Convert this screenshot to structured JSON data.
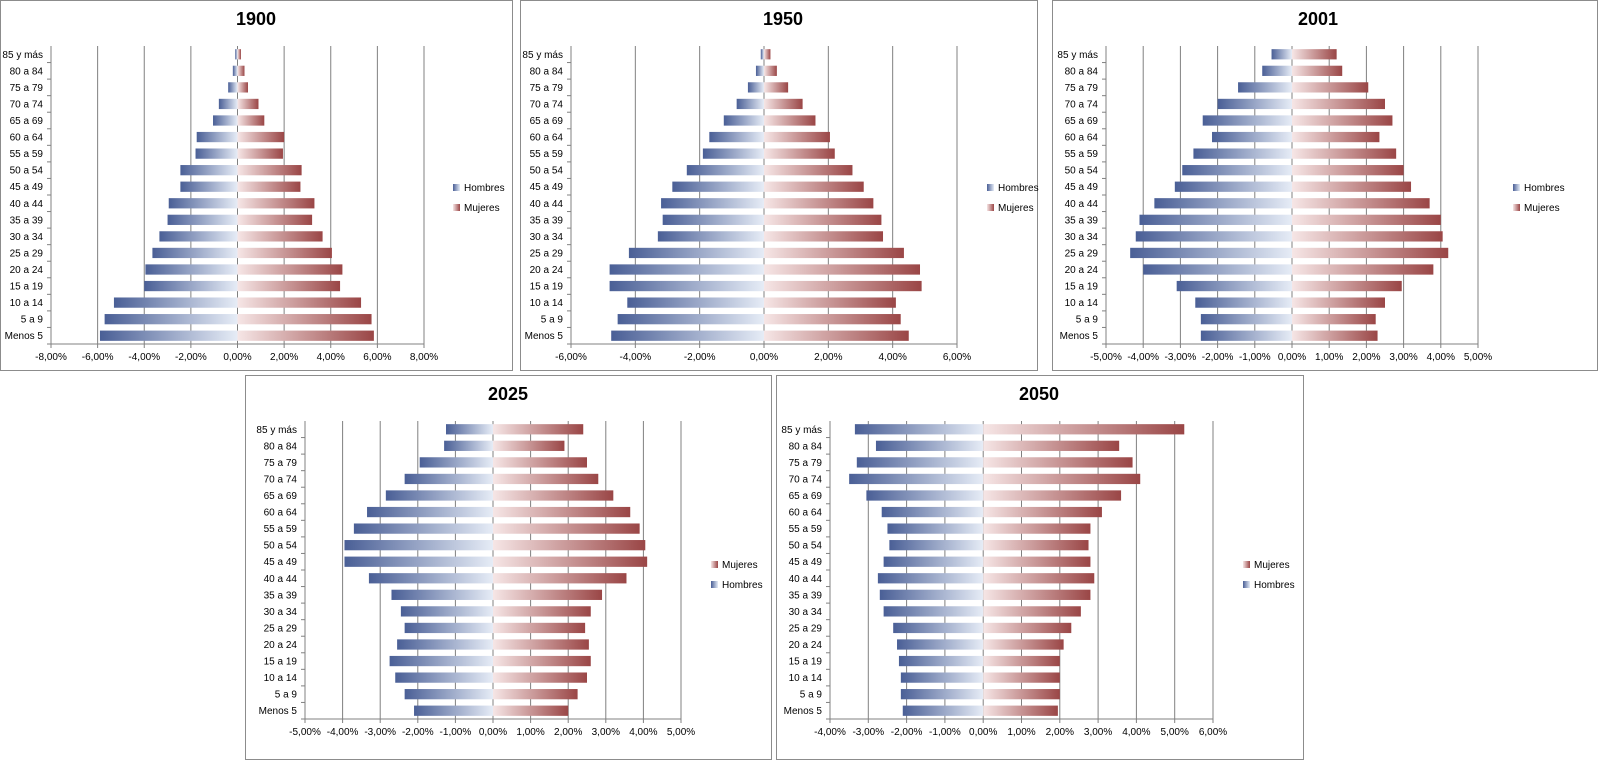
{
  "age_groups": [
    "Menos 5",
    "5 a 9",
    "10 a 14",
    "15 a 19",
    "20 a 24",
    "25 a 29",
    "30 a 34",
    "35 a 39",
    "40 a 44",
    "45 a 49",
    "50 a 54",
    "55 a 59",
    "60 a 64",
    "65 a 69",
    "70 a 74",
    "75 a 79",
    "80 a 84",
    "85 y más"
  ],
  "legend_labels": {
    "men": "Hombres",
    "women": "Mujeres"
  },
  "colors": {
    "men_dark": "#4a5f96",
    "men_light": "#e6ecf6",
    "women_light": "#f6e6e6",
    "women_dark": "#9a4646",
    "grid": "#808080",
    "axis": "#808080"
  },
  "chart_data": [
    {
      "type": "bar",
      "title": "1900",
      "legend_order": [
        "men",
        "women"
      ],
      "xlim": [
        -8,
        8
      ],
      "xticks": [
        "-8,00%",
        "-6,00%",
        "-4,00%",
        "-2,00%",
        "0,00%",
        "2,00%",
        "4,00%",
        "6,00%",
        "8,00%"
      ],
      "series": [
        {
          "name": "Hombres",
          "values": [
            -5.9,
            -5.7,
            -5.3,
            -4.0,
            -3.95,
            -3.65,
            -3.35,
            -3.0,
            -2.95,
            -2.45,
            -2.45,
            -1.8,
            -1.75,
            -1.05,
            -0.8,
            -0.4,
            -0.2,
            -0.1
          ]
        },
        {
          "name": "Mujeres",
          "values": [
            5.85,
            5.75,
            5.3,
            4.4,
            4.5,
            4.05,
            3.65,
            3.2,
            3.3,
            2.7,
            2.75,
            1.95,
            2.0,
            1.15,
            0.9,
            0.45,
            0.3,
            0.15
          ]
        }
      ]
    },
    {
      "type": "bar",
      "title": "1950",
      "legend_order": [
        "men",
        "women"
      ],
      "xlim": [
        -6,
        6
      ],
      "xticks": [
        "-6,00%",
        "-4,00%",
        "-2,00%",
        "0,00%",
        "2,00%",
        "4,00%",
        "6,00%"
      ],
      "series": [
        {
          "name": "Hombres",
          "values": [
            -4.75,
            -4.55,
            -4.25,
            -4.8,
            -4.8,
            -4.2,
            -3.3,
            -3.15,
            -3.2,
            -2.85,
            -2.4,
            -1.9,
            -1.7,
            -1.25,
            -0.85,
            -0.5,
            -0.25,
            -0.1
          ]
        },
        {
          "name": "Mujeres",
          "values": [
            4.5,
            4.25,
            4.1,
            4.9,
            4.85,
            4.35,
            3.7,
            3.65,
            3.4,
            3.1,
            2.75,
            2.2,
            2.05,
            1.6,
            1.2,
            0.75,
            0.4,
            0.2
          ]
        }
      ]
    },
    {
      "type": "bar",
      "title": "2001",
      "legend_order": [
        "men",
        "women"
      ],
      "xlim": [
        -5,
        5
      ],
      "xticks": [
        "-5,00%",
        "-4,00%",
        "-3,00%",
        "-2,00%",
        "-1,00%",
        "0,00%",
        "1,00%",
        "2,00%",
        "3,00%",
        "4,00%",
        "5,00%"
      ],
      "series": [
        {
          "name": "Hombres",
          "values": [
            -2.45,
            -2.45,
            -2.6,
            -3.1,
            -4.0,
            -4.35,
            -4.2,
            -4.1,
            -3.7,
            -3.15,
            -2.95,
            -2.65,
            -2.15,
            -2.4,
            -2.0,
            -1.45,
            -0.8,
            -0.55
          ]
        },
        {
          "name": "Mujeres",
          "values": [
            2.3,
            2.25,
            2.5,
            2.95,
            3.8,
            4.2,
            4.05,
            4.0,
            3.7,
            3.2,
            3.0,
            2.8,
            2.35,
            2.7,
            2.5,
            2.05,
            1.35,
            1.2
          ]
        }
      ]
    },
    {
      "type": "bar",
      "title": "2025",
      "legend_order": [
        "women",
        "men"
      ],
      "xlim": [
        -5,
        5
      ],
      "xticks": [
        "-5,00%",
        "-4,00%",
        "-3,00%",
        "-2,00%",
        "-1,00%",
        "0,00%",
        "1,00%",
        "2,00%",
        "3,00%",
        "4,00%",
        "5,00%"
      ],
      "series": [
        {
          "name": "Hombres",
          "values": [
            -2.1,
            -2.35,
            -2.6,
            -2.75,
            -2.55,
            -2.35,
            -2.45,
            -2.7,
            -3.3,
            -3.95,
            -3.95,
            -3.7,
            -3.35,
            -2.85,
            -2.35,
            -1.95,
            -1.3,
            -1.25
          ]
        },
        {
          "name": "Mujeres",
          "values": [
            2.0,
            2.25,
            2.5,
            2.6,
            2.55,
            2.45,
            2.6,
            2.9,
            3.55,
            4.1,
            4.05,
            3.9,
            3.65,
            3.2,
            2.8,
            2.5,
            1.9,
            2.4
          ]
        }
      ]
    },
    {
      "type": "bar",
      "title": "2050",
      "legend_order": [
        "women",
        "men"
      ],
      "xlim": [
        -4,
        6
      ],
      "xticks": [
        "-4,00%",
        "-3,00%",
        "-2,00%",
        "-1,00%",
        "0,00%",
        "1,00%",
        "2,00%",
        "3,00%",
        "4,00%",
        "5,00%",
        "6,00%"
      ],
      "series": [
        {
          "name": "Hombres",
          "values": [
            -2.1,
            -2.15,
            -2.15,
            -2.2,
            -2.25,
            -2.35,
            -2.6,
            -2.7,
            -2.75,
            -2.6,
            -2.45,
            -2.5,
            -2.65,
            -3.05,
            -3.5,
            -3.3,
            -2.8,
            -3.35
          ]
        },
        {
          "name": "Mujeres",
          "values": [
            1.95,
            2.0,
            2.0,
            2.0,
            2.1,
            2.3,
            2.55,
            2.8,
            2.9,
            2.8,
            2.75,
            2.8,
            3.1,
            3.6,
            4.1,
            3.9,
            3.55,
            5.25
          ]
        }
      ]
    }
  ]
}
